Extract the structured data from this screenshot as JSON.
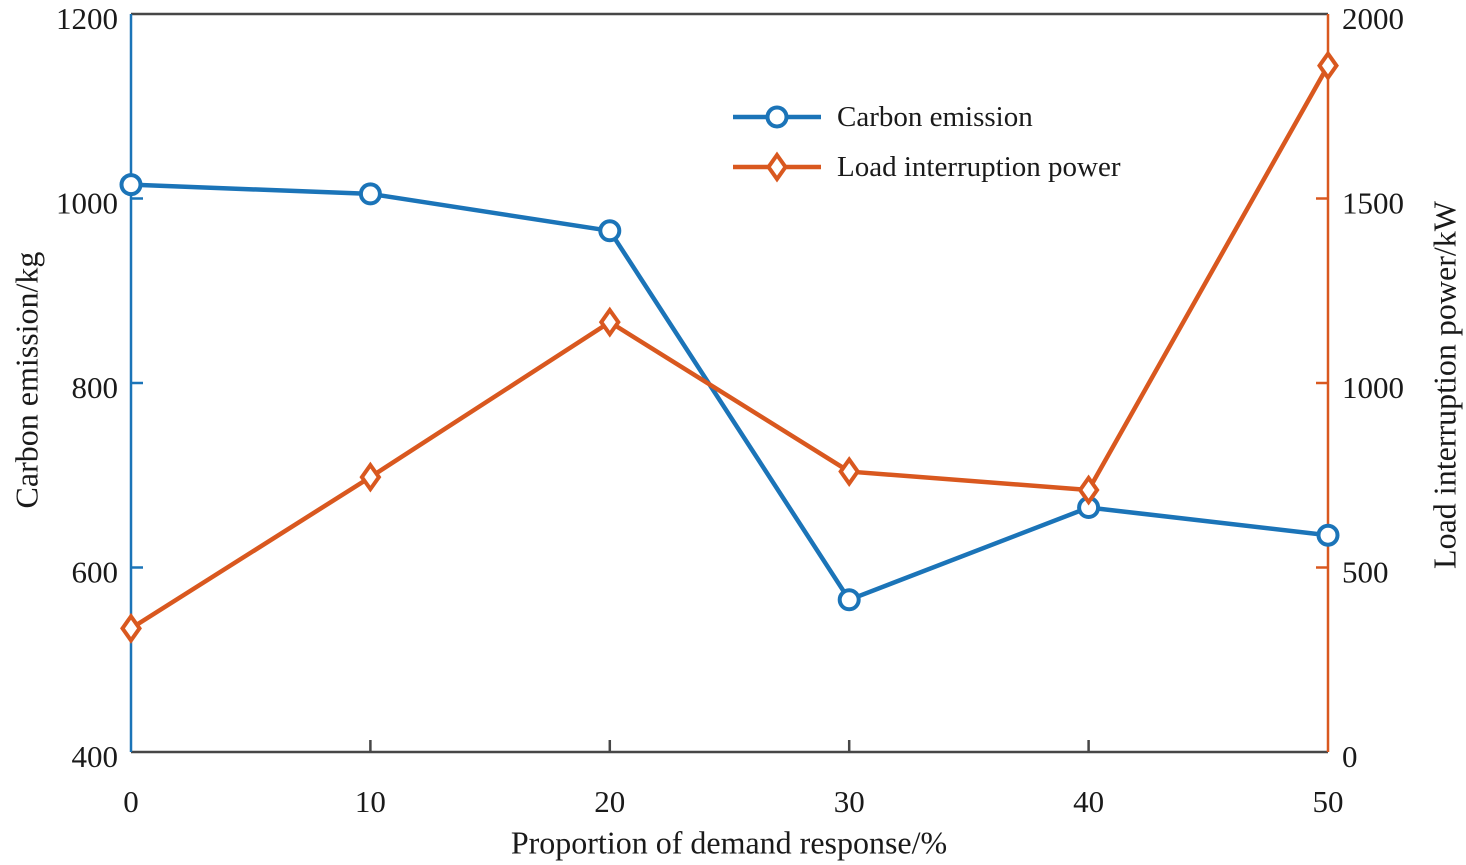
{
  "colors": {
    "blue": "#1b74b8",
    "orange": "#d9581f",
    "frame": "#474747",
    "text": "#1a1a1a",
    "background": "#ffffff"
  },
  "chart_data": {
    "type": "line",
    "title": "",
    "xlabel": "Proportion of demand response/%",
    "ylabel_left": "Carbon emission/kg",
    "ylabel_right": "Load interruption power/kW",
    "x": [
      0,
      10,
      20,
      30,
      40,
      50
    ],
    "x_axis": {
      "min": 0,
      "max": 50,
      "ticks": [
        0,
        10,
        20,
        30,
        40,
        50
      ]
    },
    "left_axis": {
      "min": 400,
      "max": 1200,
      "ticks": [
        400,
        600,
        800,
        1000,
        1200
      ]
    },
    "right_axis": {
      "min": 0,
      "max": 2000,
      "ticks": [
        0,
        500,
        1000,
        1500,
        2000
      ]
    },
    "grid": false,
    "legend": {
      "position": "upper-center-inside",
      "border": false
    },
    "series": [
      {
        "name": "Carbon emission",
        "axis": "left",
        "marker": "circle",
        "color": "#1b74b8",
        "values": [
          1015,
          1005,
          965,
          565,
          665,
          635
        ]
      },
      {
        "name": "Load interruption power",
        "axis": "right",
        "marker": "diamond",
        "color": "#d9581f",
        "values": [
          335,
          745,
          1165,
          760,
          710,
          1860
        ]
      }
    ]
  }
}
